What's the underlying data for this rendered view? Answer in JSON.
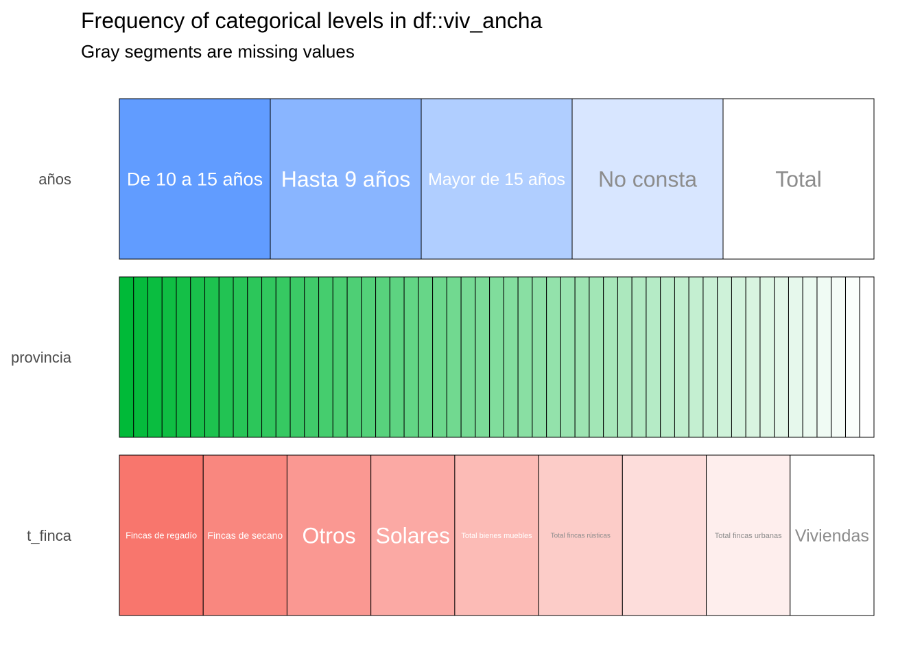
{
  "chart_data": {
    "type": "bar",
    "orientation": "horizontal-stacked-proportion",
    "title": "Frequency of categorical levels in df::viv_ancha",
    "subtitle": "Gray segments are missing values",
    "series": [
      {
        "name": "años",
        "color": "#619cff",
        "categories": [
          "De 10 a 15 años",
          "Hasta 9 años",
          "Mayor de 15 años",
          "No consta",
          "Total"
        ],
        "values": [
          0.2,
          0.2,
          0.2,
          0.2,
          0.2
        ],
        "shown_labels": [
          "De 10 a 15 años",
          "Hasta 9 años",
          "Mayor de 15 años",
          "No consta",
          "Total"
        ]
      },
      {
        "name": "provincia",
        "color": "#00ba38",
        "level_count": 53,
        "values": [
          0.018868,
          0.018868,
          0.018868,
          0.018868,
          0.018868,
          0.018868,
          0.018868,
          0.018868,
          0.018868,
          0.018868,
          0.018868,
          0.018868,
          0.018868,
          0.018868,
          0.018868,
          0.018868,
          0.018868,
          0.018868,
          0.018868,
          0.018868,
          0.018868,
          0.018868,
          0.018868,
          0.018868,
          0.018868,
          0.018868,
          0.018868,
          0.018868,
          0.018868,
          0.018868,
          0.018868,
          0.018868,
          0.018868,
          0.018868,
          0.018868,
          0.018868,
          0.018868,
          0.018868,
          0.018868,
          0.018868,
          0.018868,
          0.018868,
          0.018868,
          0.018868,
          0.018868,
          0.018868,
          0.018868,
          0.018868,
          0.018868,
          0.018868,
          0.018868,
          0.018868,
          0.018868
        ]
      },
      {
        "name": "t_finca",
        "color": "#f8766d",
        "categories": [
          "Fincas de regadío",
          "Fincas de secano",
          "Otros",
          "Solares",
          "Total bienes muebles",
          "Total fincas rústicas",
          "",
          "Total fincas urbanas",
          "Viviendas"
        ],
        "values": [
          0.111,
          0.111,
          0.111,
          0.111,
          0.111,
          0.111,
          0.111,
          0.111,
          0.111
        ],
        "shown_labels": [
          "Fincas de regadío",
          "Fincas de secano",
          "Otros",
          "Solares",
          "Total bienes muebles",
          "Total fincas rústicas",
          "",
          "Total fincas urbanas",
          "Viviendas"
        ]
      }
    ],
    "xlim": [
      0,
      1
    ],
    "legend": "none",
    "grid": false
  }
}
